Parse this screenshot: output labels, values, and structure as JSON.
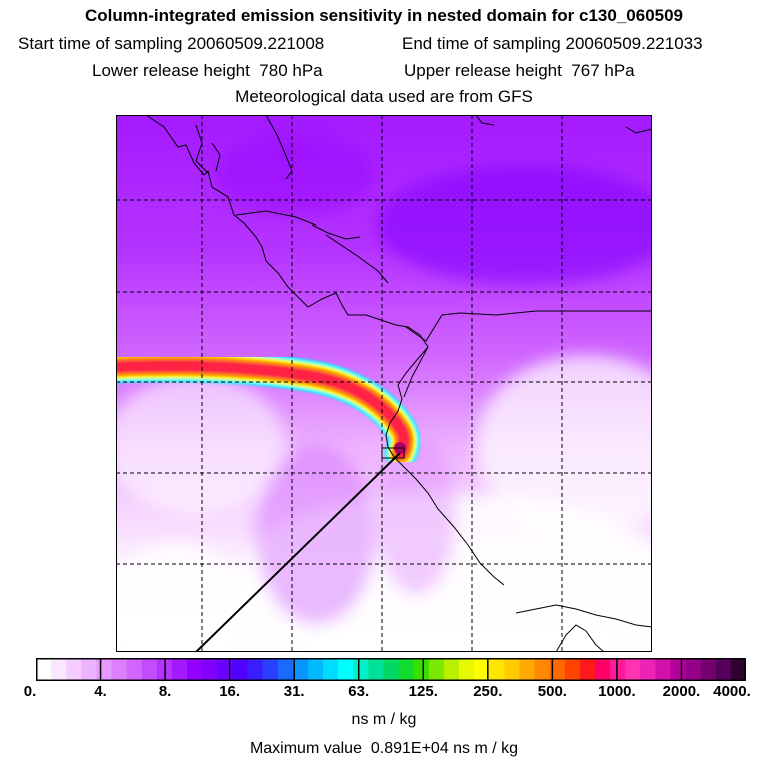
{
  "header": {
    "title": "Column-integrated emission sensitivity in nested domain for c130_060509",
    "start_label": "Start time of sampling",
    "start_value": "20060509.221008",
    "end_label": "End time of sampling",
    "end_value": "20060509.221033",
    "lower_label": "Lower release height",
    "lower_value": "780 hPa",
    "upper_label": "Upper release height",
    "upper_value": "767 hPa",
    "met": "Meteorological data used are from GFS"
  },
  "colorbar": {
    "ticks": [
      "0.",
      "4.",
      "8.",
      "16.",
      "31.",
      "63.",
      "125.",
      "250.",
      "500.",
      "1000.",
      "2000.",
      "4000."
    ],
    "colors": [
      "#ffffff",
      "#fbe6ff",
      "#f5ccff",
      "#eeb3ff",
      "#e699ff",
      "#dd80ff",
      "#d166ff",
      "#c44cff",
      "#b533ff",
      "#a41aff",
      "#9400ff",
      "#8000ff",
      "#6a00ff",
      "#5000ff",
      "#3a1eff",
      "#2a40ff",
      "#1a6aff",
      "#0a94ff",
      "#00baff",
      "#00dcff",
      "#00ffff",
      "#00f0c8",
      "#00e096",
      "#00d864",
      "#10dc30",
      "#38e000",
      "#7ae800",
      "#b8f000",
      "#e8f800",
      "#ffff00",
      "#ffe600",
      "#ffcc00",
      "#ffaa00",
      "#ff8800",
      "#ff6a00",
      "#ff4400",
      "#ff1a1a",
      "#ff0066",
      "#ff1a99",
      "#ff33b3",
      "#ee22b8",
      "#d111aa",
      "#b3009a",
      "#940088",
      "#740070",
      "#55005a",
      "#300030"
    ],
    "units": "ns m / kg",
    "max_label": "Maximum value",
    "max_value": "0.891E+04 ns m / kg"
  },
  "map": {
    "plume_colors": {
      "edge": "#00ffff",
      "mid": "#ffff00",
      "orange": "#ff8800",
      "core": "#ff2244"
    }
  }
}
